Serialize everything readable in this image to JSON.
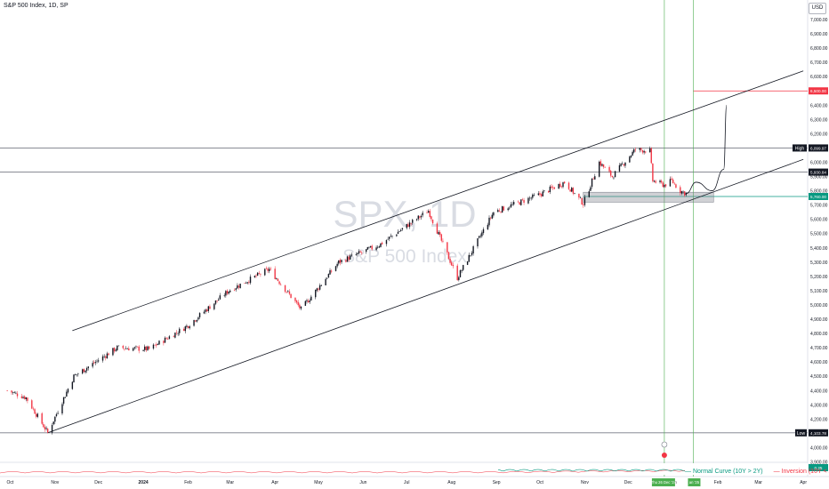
{
  "header": {
    "title": "S&P 500 Index, 1D, SP",
    "currency": "USD"
  },
  "chart_data": {
    "type": "candlestick",
    "symbol": "SPX",
    "interval": "1D",
    "watermark_symbol": "SPX, 1D",
    "watermark_name": "S&P 500 Index",
    "x_axis": {
      "tick_labels": [
        "Oct",
        "Nov",
        "Dec",
        "2024",
        "Feb",
        "Mar",
        "Apr",
        "May",
        "Jun",
        "Jul",
        "Aug",
        "Sep",
        "Oct",
        "Nov",
        "Dec",
        "Jan",
        "Feb",
        "Mar",
        "Apr"
      ],
      "cursor_label": "Thu 26 Dec '24",
      "cursor_label_2": "an '25"
    },
    "y_axis": {
      "ylim": [
        3900,
        7150
      ],
      "tick_labels": [
        "7,000.00",
        "6,900.00",
        "6,800.00",
        "6,700.00",
        "6,600.00",
        "6,500.00",
        "6,400.00",
        "6,300.00",
        "6,200.00",
        "6,100.00",
        "6,000.00",
        "5,900.00",
        "5,800.00",
        "5,700.00",
        "5,600.00",
        "5,500.00",
        "5,400.00",
        "5,300.00",
        "5,200.00",
        "5,100.00",
        "5,000.00",
        "4,900.00",
        "4,800.00",
        "4,700.00",
        "4,600.00",
        "4,500.00",
        "4,400.00",
        "4,300.00",
        "4,200.00",
        "4,100.00",
        "4,000.00",
        "3,900.00"
      ],
      "markers": [
        {
          "label": "High",
          "value": "6,099.97",
          "color": "#131722"
        },
        {
          "label": "",
          "value": "5,930.84",
          "color": "#131722"
        },
        {
          "label": "",
          "value": "5,760.00",
          "color": "#089981"
        },
        {
          "label": "",
          "value": "6,500.00",
          "color": "#f23645"
        },
        {
          "label": "Low",
          "value": "4,103.78",
          "color": "#131722"
        }
      ]
    },
    "price_path": [
      [
        "2023-09-29",
        4400
      ],
      [
        "2023-10-12",
        4350
      ],
      [
        "2023-10-27",
        4103.78
      ],
      [
        "2023-11-14",
        4500
      ],
      [
        "2023-12-14",
        4700
      ],
      [
        "2024-01-05",
        4690
      ],
      [
        "2024-01-31",
        4850
      ],
      [
        "2024-02-29",
        5100
      ],
      [
        "2024-03-28",
        5250
      ],
      [
        "2024-04-19",
        4970
      ],
      [
        "2024-05-15",
        5300
      ],
      [
        "2024-06-12",
        5420
      ],
      [
        "2024-07-16",
        5660
      ],
      [
        "2024-08-05",
        5190
      ],
      [
        "2024-08-30",
        5650
      ],
      [
        "2024-09-30",
        5770
      ],
      [
        "2024-10-18",
        5860
      ],
      [
        "2024-10-31",
        5710
      ],
      [
        "2024-11-11",
        6000
      ],
      [
        "2024-11-20",
        5900
      ],
      [
        "2024-12-06",
        6090
      ],
      [
        "2024-12-16",
        6080
      ],
      [
        "2024-12-18",
        5870
      ],
      [
        "2024-12-26",
        5840
      ],
      [
        "2024-12-31",
        5870
      ],
      [
        "2025-01-06",
        5800
      ],
      [
        "2025-01-10",
        5780
      ]
    ],
    "trend_channel": {
      "upper": [
        [
          "2023-11-13",
          4820
        ],
        [
          "2025-04-01",
          6640
        ]
      ],
      "lower": [
        [
          "2023-10-27",
          4103.78
        ],
        [
          "2025-04-01",
          6020
        ]
      ]
    },
    "support_zone": [
      5720,
      5790
    ],
    "projection_path": [
      [
        "2025-01-10",
        5780
      ],
      [
        "2025-01-17",
        5860
      ],
      [
        "2025-01-28",
        5800
      ],
      [
        "2025-02-05",
        5950
      ],
      [
        "2025-02-07",
        6400
      ]
    ],
    "indicator": {
      "legend": [
        {
          "label": "Normal Curve (10Y > 2Y)",
          "color": "#089981"
        },
        {
          "label": "Inversion (10Y < 2Y)",
          "color": "#f23645"
        }
      ],
      "value_label": "0.25"
    }
  }
}
